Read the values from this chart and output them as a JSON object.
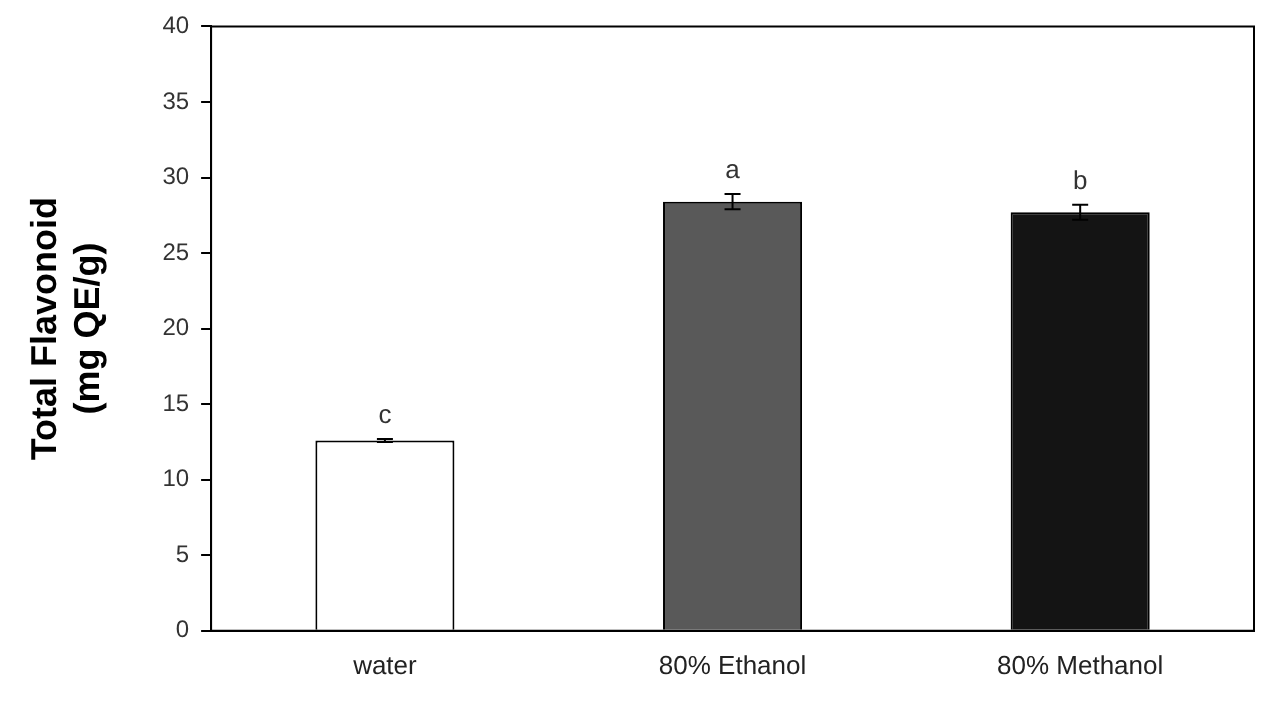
{
  "chart_data": {
    "type": "bar",
    "ylabel": "Total Flavonoid\n(mg QE/g)",
    "categories": [
      "water",
      "80% Ethanol",
      "80% Methanol"
    ],
    "values": [
      12.6,
      28.4,
      27.7
    ],
    "colors": [
      "#ffffff",
      "#595959",
      "#141414"
    ],
    "errors": [
      0.1,
      0.5,
      0.5
    ],
    "ylim": [
      0,
      40
    ],
    "yticks": [
      0,
      5,
      10,
      15,
      20,
      25,
      30,
      35,
      40
    ],
    "grid": false,
    "legend": false,
    "annotations": [
      {
        "text": "c",
        "x": "water",
        "y": 12.7
      },
      {
        "text": "a",
        "x": "80% Ethanol",
        "y": 28.9
      },
      {
        "text": "b",
        "x": "80% Methanol",
        "y": 28.2
      }
    ]
  }
}
